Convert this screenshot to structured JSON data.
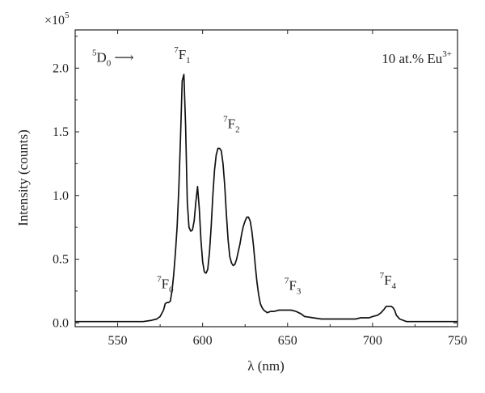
{
  "chart_data": {
    "type": "line",
    "xlabel": "λ (nm)",
    "ylabel": "Intensity (counts)",
    "y_multiplier": "×10",
    "y_multiplier_exp": "5",
    "xlim": [
      525,
      750
    ],
    "ylim": [
      -0.03,
      2.3
    ],
    "xticks": [
      550,
      600,
      650,
      700,
      750
    ],
    "xtick_labels": [
      "550",
      "600",
      "650",
      "700",
      "750"
    ],
    "yticks": [
      0.0,
      0.5,
      1.0,
      1.5,
      2.0
    ],
    "ytick_labels": [
      "0.0",
      "0.5",
      "1.0",
      "1.5",
      "2.0"
    ],
    "grid": false,
    "series": [
      {
        "x": [
          525,
          540,
          550,
          560,
          565,
          570,
          573,
          575,
          577,
          578,
          579,
          580,
          581,
          582,
          583,
          584,
          585,
          586,
          587,
          588,
          589,
          590,
          591,
          592,
          593,
          594,
          595,
          596,
          597,
          598,
          599,
          600,
          601,
          602,
          603,
          604,
          605,
          606,
          607,
          608,
          609,
          610,
          611,
          612,
          613,
          614,
          615,
          616,
          617,
          618,
          619,
          620,
          621,
          622,
          623,
          624,
          625,
          626,
          627,
          628,
          629,
          630,
          631,
          632,
          633,
          634,
          635,
          636,
          637,
          638,
          640,
          642,
          645,
          648,
          650,
          652,
          655,
          658,
          660,
          665,
          670,
          675,
          680,
          685,
          690,
          693,
          696,
          698,
          700,
          703,
          705,
          707,
          708,
          709,
          710,
          711,
          712,
          713,
          714,
          716,
          720,
          725,
          730,
          740,
          750
        ],
        "y": [
          0.01,
          0.01,
          0.01,
          0.01,
          0.01,
          0.02,
          0.03,
          0.05,
          0.1,
          0.15,
          0.16,
          0.16,
          0.17,
          0.25,
          0.38,
          0.55,
          0.75,
          1.05,
          1.45,
          1.9,
          1.95,
          1.55,
          0.95,
          0.75,
          0.72,
          0.73,
          0.8,
          0.95,
          1.07,
          0.9,
          0.65,
          0.48,
          0.4,
          0.39,
          0.42,
          0.55,
          0.75,
          1.0,
          1.2,
          1.32,
          1.37,
          1.37,
          1.35,
          1.25,
          1.08,
          0.85,
          0.65,
          0.52,
          0.47,
          0.45,
          0.46,
          0.5,
          0.56,
          0.62,
          0.7,
          0.76,
          0.8,
          0.83,
          0.83,
          0.8,
          0.72,
          0.6,
          0.45,
          0.32,
          0.22,
          0.15,
          0.12,
          0.1,
          0.09,
          0.08,
          0.09,
          0.09,
          0.1,
          0.1,
          0.1,
          0.1,
          0.09,
          0.07,
          0.05,
          0.04,
          0.03,
          0.03,
          0.03,
          0.03,
          0.03,
          0.04,
          0.04,
          0.04,
          0.05,
          0.06,
          0.08,
          0.11,
          0.13,
          0.13,
          0.13,
          0.13,
          0.12,
          0.1,
          0.06,
          0.03,
          0.01,
          0.01,
          0.01,
          0.01,
          0.01
        ]
      }
    ],
    "annotations": [
      {
        "key": "d0",
        "base": "D",
        "pre_sup": "5",
        "sub": "0",
        "suffix": "⟶",
        "x": 535,
        "y": 2.05
      },
      {
        "key": "f0",
        "base": "F",
        "pre_sup": "7",
        "sub": "0",
        "x": 578,
        "y": 0.27
      },
      {
        "key": "f1",
        "base": "F",
        "pre_sup": "7",
        "sub": "1",
        "x": 588,
        "y": 2.07
      },
      {
        "key": "f2",
        "base": "F",
        "pre_sup": "7",
        "sub": "2",
        "x": 617,
        "y": 1.53
      },
      {
        "key": "f3",
        "base": "F",
        "pre_sup": "7",
        "sub": "3",
        "x": 653,
        "y": 0.26
      },
      {
        "key": "f4",
        "base": "F",
        "pre_sup": "7",
        "sub": "4",
        "x": 709,
        "y": 0.3
      }
    ],
    "inset_label": {
      "text": "10 at.% Eu",
      "sup": "3+"
    }
  }
}
